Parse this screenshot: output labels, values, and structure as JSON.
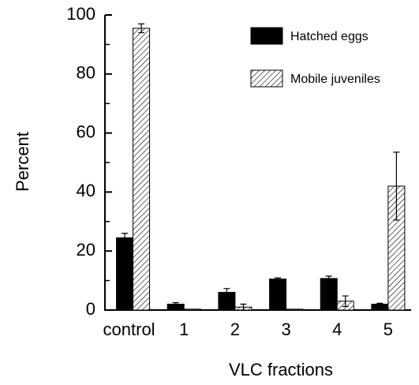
{
  "chart_data": {
    "type": "bar",
    "categories": [
      "control",
      "1",
      "2",
      "3",
      "4",
      "5"
    ],
    "series": [
      {
        "name": "Hatched eggs",
        "color": "#000000",
        "pattern": "solid",
        "values": [
          24.5,
          2,
          6,
          10.5,
          10.7,
          2
        ],
        "errors": [
          1.5,
          0.5,
          1.3,
          0.4,
          0.8,
          0.3
        ]
      },
      {
        "name": "Mobile juveniles",
        "color": "#000000",
        "pattern": "hatch",
        "values": [
          95.5,
          0.3,
          1,
          0.3,
          3,
          42
        ],
        "errors": [
          1.5,
          0,
          1,
          0,
          1.8,
          11.5
        ]
      }
    ],
    "xlabel": "VLC fractions",
    "ylabel": "Percent",
    "ylim": [
      0,
      100
    ],
    "yticks": [
      0,
      20,
      40,
      60,
      80,
      100
    ],
    "yticks_minor": [
      10,
      30,
      50,
      70,
      90
    ],
    "legend": "upper right"
  }
}
